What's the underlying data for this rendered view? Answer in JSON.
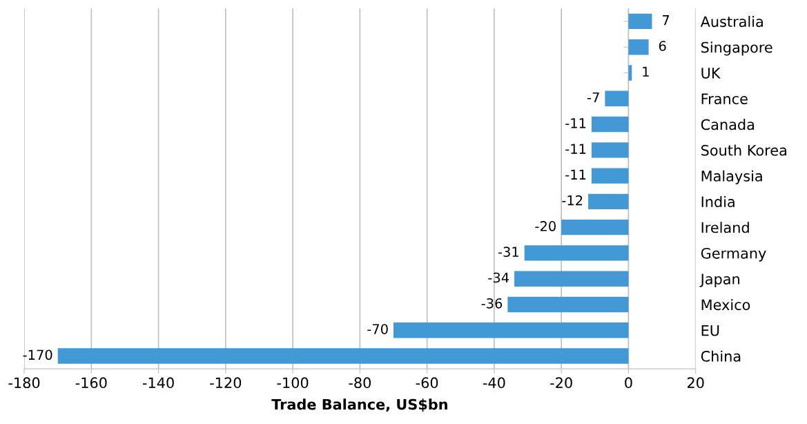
{
  "chart_data": {
    "type": "bar",
    "orientation": "horizontal",
    "xlabel": "Trade Balance, US$bn",
    "categories": [
      "Australia",
      "Singapore",
      "UK",
      "France",
      "Canada",
      "South Korea",
      "Malaysia",
      "India",
      "Ireland",
      "Germany",
      "Japan",
      "Mexico",
      "EU",
      "China"
    ],
    "values": [
      7,
      6,
      1,
      -7,
      -11,
      -11,
      -11,
      -12,
      -20,
      -31,
      -34,
      -36,
      -70,
      -170
    ],
    "color": "#4398d6",
    "xlim": [
      -180,
      20
    ],
    "xticks": [
      -180,
      -160,
      -140,
      -120,
      -100,
      -80,
      -60,
      -40,
      -20,
      0,
      20
    ],
    "grid": "x",
    "data_labels": true
  }
}
